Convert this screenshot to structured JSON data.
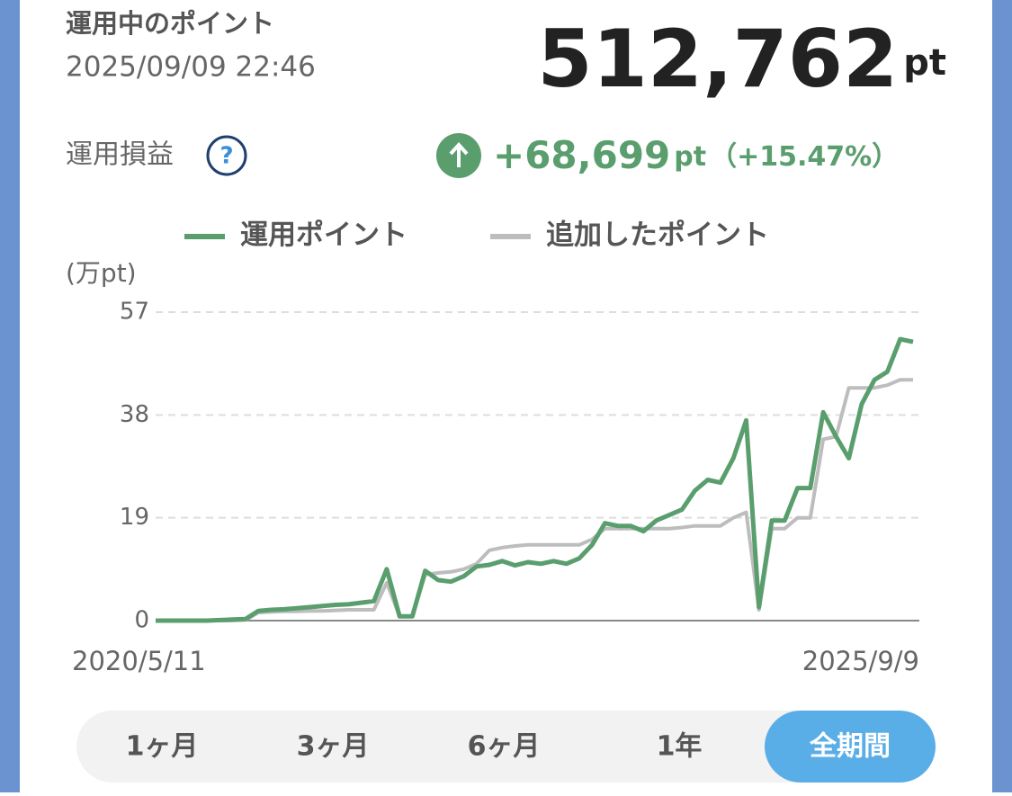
{
  "header": {
    "title": "運用中のポイント",
    "datetime": "2025/09/09 22:46",
    "total": "512,762",
    "total_unit": "pt",
    "gain_label": "運用損益",
    "help": "?",
    "gain": "+68,699",
    "gain_unit": "pt",
    "gain_pct": "（+15.47%）"
  },
  "chart_data": {
    "type": "line",
    "y_label": "(万pt)",
    "categories": [
      "2020/5/11",
      null,
      null,
      null,
      null,
      null,
      null,
      null,
      null,
      null,
      null,
      null,
      null,
      null,
      null,
      null,
      null,
      null,
      null,
      null,
      null,
      null,
      null,
      null,
      null,
      null,
      null,
      null,
      null,
      null,
      null,
      null,
      null,
      null,
      null,
      null,
      null,
      null,
      null,
      null,
      null,
      null,
      null,
      null,
      null,
      null,
      null,
      null,
      null,
      null,
      null,
      null,
      null,
      null,
      null,
      null,
      null,
      null,
      null,
      "2025/9/9"
    ],
    "series": [
      {
        "name": "運用ポイント",
        "color": "#5a9e6e",
        "values": [
          0,
          0,
          0,
          0,
          0,
          0.1,
          0.2,
          0.3,
          1.8,
          2,
          2.1,
          2.3,
          2.5,
          2.7,
          2.9,
          3,
          3.3,
          3.6,
          9.5,
          0.8,
          0.8,
          9.2,
          7.5,
          7.2,
          8.2,
          10,
          10.3,
          11,
          10.2,
          10.8,
          10.5,
          11,
          10.5,
          11.5,
          14,
          18,
          17.5,
          17.5,
          16.5,
          18.5,
          19.5,
          20.5,
          24,
          26,
          25.5,
          30,
          37,
          2.5,
          18.5,
          18.5,
          24.5,
          24.5,
          38.5,
          34,
          30,
          40,
          44.5,
          46,
          52,
          51.5
        ]
      },
      {
        "name": "追加したポイント",
        "color": "#bdbdbd",
        "values": [
          0,
          0,
          0,
          0,
          0,
          0,
          0,
          0.1,
          1.5,
          1.6,
          1.7,
          1.7,
          1.8,
          1.8,
          1.9,
          2,
          2,
          2,
          7,
          0.8,
          0.8,
          8.5,
          8.8,
          9,
          9.5,
          10.5,
          13,
          13.5,
          13.8,
          14,
          14,
          14,
          14,
          14,
          15,
          17,
          17,
          17,
          17,
          17,
          17,
          17.2,
          17.5,
          17.5,
          17.5,
          19,
          20,
          2,
          17,
          17,
          19,
          19,
          33.5,
          34,
          43,
          43,
          43,
          43.5,
          44.5,
          44.5
        ]
      }
    ],
    "ylim": [
      0,
      57
    ],
    "yticks": [
      0,
      19,
      38,
      57
    ],
    "grid": true,
    "legend": "top"
  },
  "tabs": {
    "items": [
      "1ヶ月",
      "3ヶ月",
      "6ヶ月",
      "1年",
      "全期間"
    ],
    "active": 4
  }
}
